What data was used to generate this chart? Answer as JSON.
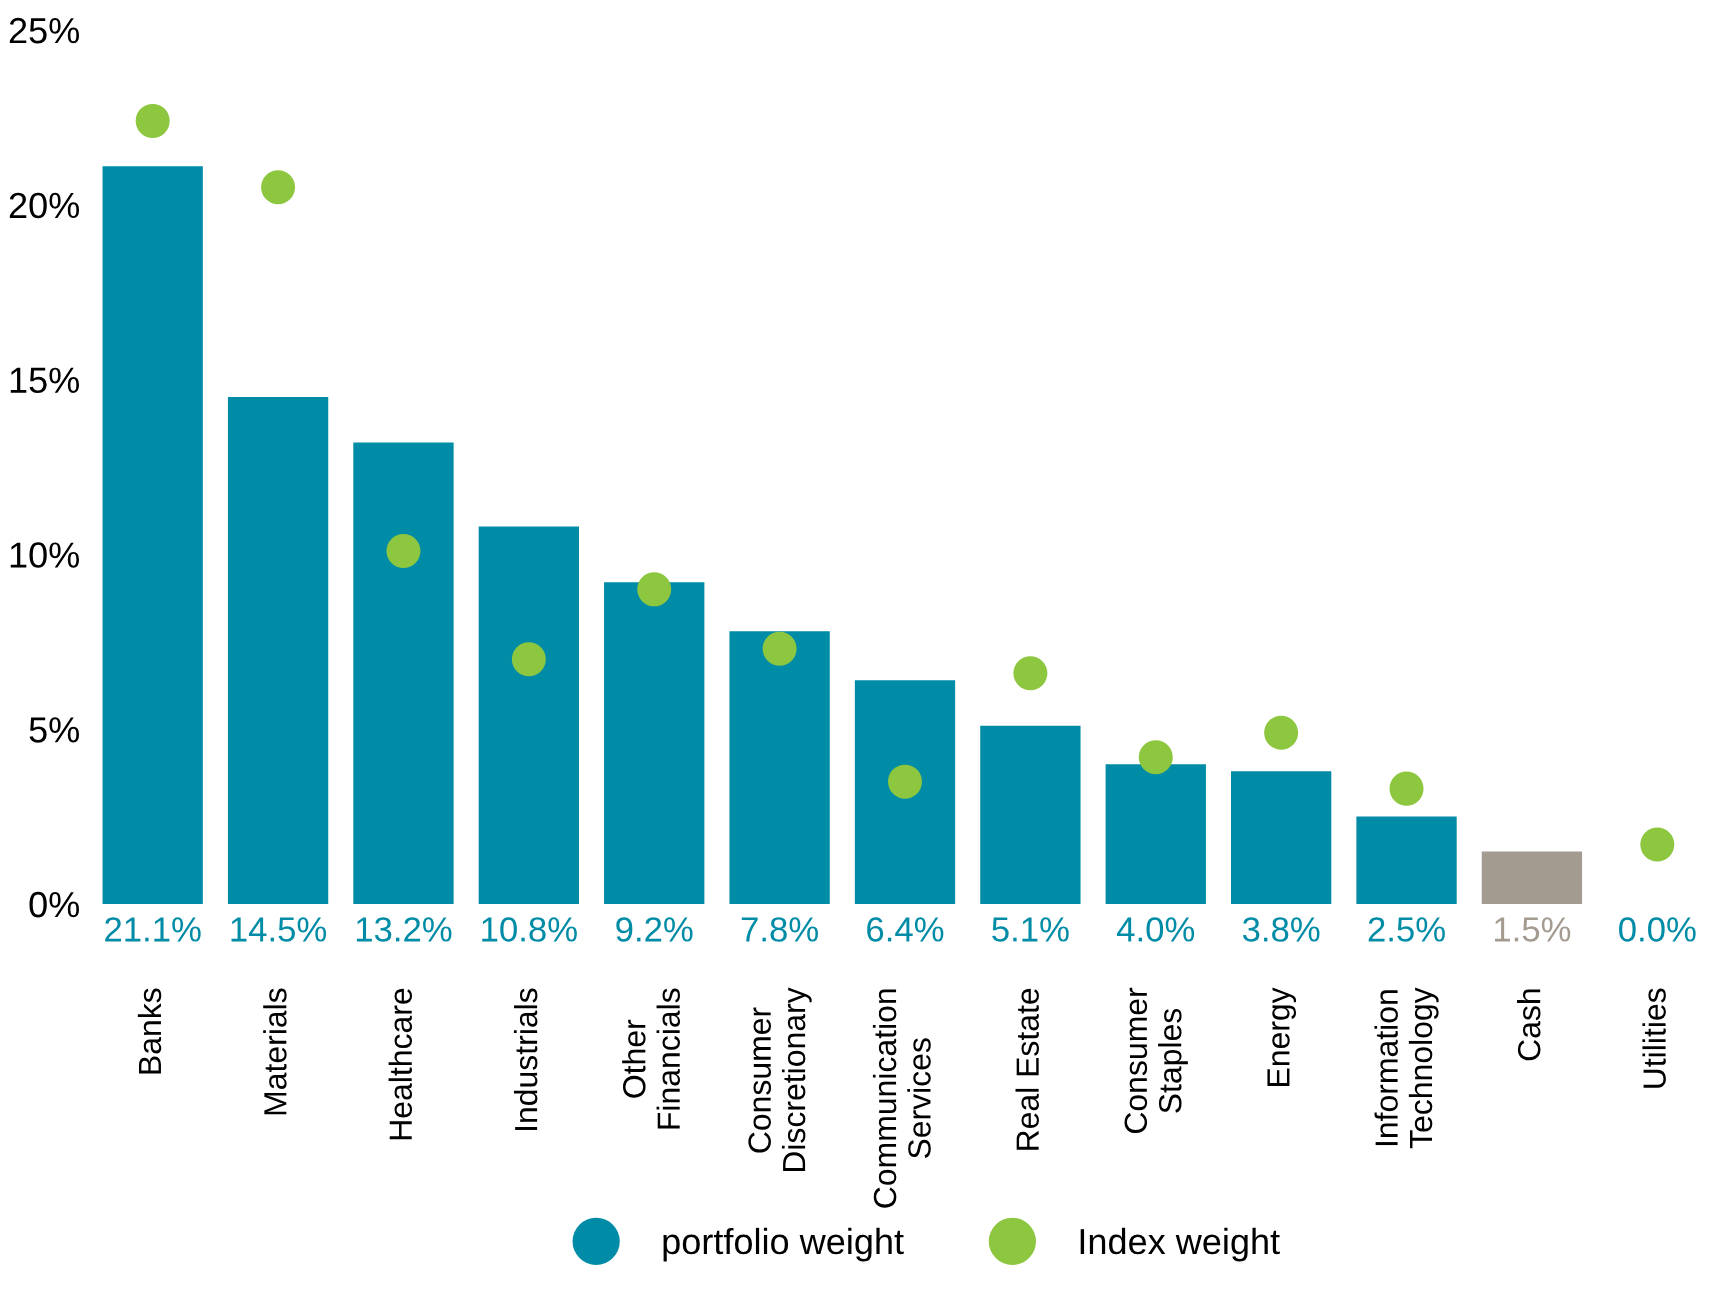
{
  "chart_data": {
    "type": "bar",
    "categories": [
      "Banks",
      "Materials",
      "Healthcare",
      "Industrials",
      "Other\nFinancials",
      "Consumer\nDiscretionary",
      "Communication\nServices",
      "Real Estate",
      "Consumer\nStaples",
      "Energy",
      "Information\nTechnology",
      "Cash",
      "Utilities"
    ],
    "series": [
      {
        "name": "portfolio weight",
        "color": "#008ba6",
        "colors": [
          "#008ba6",
          "#008ba6",
          "#008ba6",
          "#008ba6",
          "#008ba6",
          "#008ba6",
          "#008ba6",
          "#008ba6",
          "#008ba6",
          "#008ba6",
          "#008ba6",
          "#a39a90",
          "#008ba6"
        ],
        "values": [
          21.1,
          14.5,
          13.2,
          10.8,
          9.2,
          7.8,
          6.4,
          5.1,
          4.0,
          3.8,
          2.5,
          1.5,
          0.0
        ],
        "value_labels": [
          "21.1%",
          "14.5%",
          "13.2%",
          "10.8%",
          "9.2%",
          "7.8%",
          "6.4%",
          "5.1%",
          "4.0%",
          "3.8%",
          "2.5%",
          "1.5%",
          "0.0%"
        ]
      },
      {
        "name": "Index weight",
        "type": "scatter",
        "color": "#8dc63f",
        "values": [
          22.4,
          20.5,
          10.1,
          7.0,
          9.0,
          7.3,
          3.5,
          6.6,
          4.2,
          4.9,
          3.3,
          null,
          1.7
        ]
      }
    ],
    "ylim": [
      0,
      25
    ],
    "yticks": [
      {
        "value": 0,
        "label": "0%"
      },
      {
        "value": 5,
        "label": "5%"
      },
      {
        "value": 10,
        "label": "10%"
      },
      {
        "value": 15,
        "label": "15%"
      },
      {
        "value": 20,
        "label": "20%"
      },
      {
        "value": 25,
        "label": "25%"
      }
    ],
    "grid": false,
    "legend": "bottom",
    "marker": "circle"
  }
}
